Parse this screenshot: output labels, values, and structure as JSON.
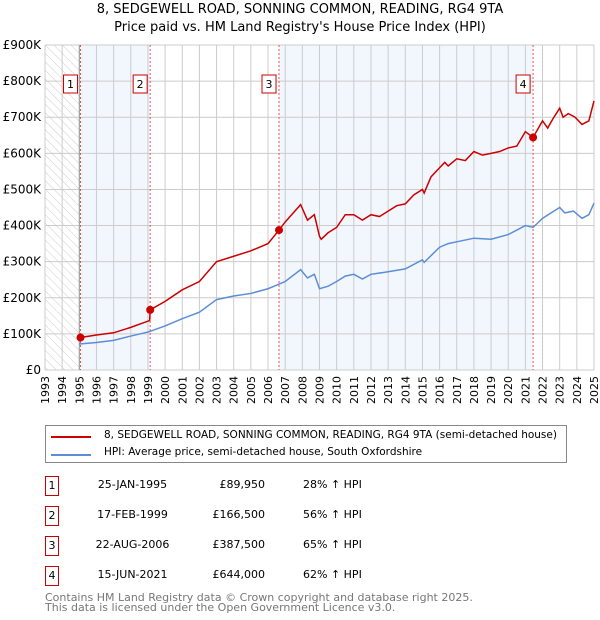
{
  "chart_data": {
    "type": "line",
    "title": "8, SEDGEWELL ROAD, SONNING COMMON, READING, RG4 9TA",
    "subtitle": "Price paid vs. HM Land Registry's House Price Index (HPI)",
    "xlim": [
      1993,
      2025
    ],
    "ylim": [
      0,
      900000
    ],
    "yticks": [
      {
        "v": 0,
        "l": "£0"
      },
      {
        "v": 100000,
        "l": "£100K"
      },
      {
        "v": 200000,
        "l": "£200K"
      },
      {
        "v": 300000,
        "l": "£300K"
      },
      {
        "v": 400000,
        "l": "£400K"
      },
      {
        "v": 500000,
        "l": "£500K"
      },
      {
        "v": 600000,
        "l": "£600K"
      },
      {
        "v": 700000,
        "l": "£700K"
      },
      {
        "v": 800000,
        "l": "£800K"
      },
      {
        "v": 900000,
        "l": "£900K"
      }
    ],
    "xticks": [
      "1993",
      "1994",
      "1995",
      "1996",
      "1997",
      "1998",
      "1999",
      "2000",
      "2001",
      "2002",
      "2003",
      "2004",
      "2005",
      "2006",
      "2007",
      "2008",
      "2009",
      "2010",
      "2011",
      "2012",
      "2013",
      "2014",
      "2015",
      "2016",
      "2017",
      "2018",
      "2019",
      "2020",
      "2021",
      "2022",
      "2023",
      "2024",
      "2025"
    ],
    "series": [
      {
        "name": "8, SEDGEWELL ROAD, SONNING COMMON, READING, RG4 9TA (semi-detached house)",
        "color": "#cc0000",
        "points": [
          [
            1995.07,
            89950
          ],
          [
            1996,
            97000
          ],
          [
            1997,
            103000
          ],
          [
            1998,
            118000
          ],
          [
            1999.1,
            137000
          ],
          [
            1999.13,
            166500
          ],
          [
            2000,
            190000
          ],
          [
            2001,
            222000
          ],
          [
            2002,
            245000
          ],
          [
            2003,
            300000
          ],
          [
            2004,
            315000
          ],
          [
            2005,
            330000
          ],
          [
            2006,
            350000
          ],
          [
            2006.64,
            387500
          ],
          [
            2007,
            410000
          ],
          [
            2007.9,
            458000
          ],
          [
            2008.3,
            415000
          ],
          [
            2008.7,
            430000
          ],
          [
            2009,
            370000
          ],
          [
            2009.1,
            362000
          ],
          [
            2009.5,
            380000
          ],
          [
            2010,
            395000
          ],
          [
            2010.5,
            430000
          ],
          [
            2011,
            430000
          ],
          [
            2011.5,
            415000
          ],
          [
            2012,
            430000
          ],
          [
            2012.5,
            425000
          ],
          [
            2013,
            440000
          ],
          [
            2013.5,
            455000
          ],
          [
            2014,
            460000
          ],
          [
            2014.5,
            485000
          ],
          [
            2015,
            500000
          ],
          [
            2015.1,
            490000
          ],
          [
            2015.5,
            535000
          ],
          [
            2016,
            560000
          ],
          [
            2016.3,
            575000
          ],
          [
            2016.5,
            565000
          ],
          [
            2017,
            585000
          ],
          [
            2017.5,
            580000
          ],
          [
            2018,
            605000
          ],
          [
            2018.5,
            595000
          ],
          [
            2019,
            600000
          ],
          [
            2019.5,
            605000
          ],
          [
            2020,
            615000
          ],
          [
            2020.5,
            620000
          ],
          [
            2021,
            660000
          ],
          [
            2021.45,
            644000
          ],
          [
            2022,
            690000
          ],
          [
            2022.3,
            670000
          ],
          [
            2022.6,
            695000
          ],
          [
            2023,
            725000
          ],
          [
            2023.2,
            700000
          ],
          [
            2023.5,
            710000
          ],
          [
            2023.9,
            700000
          ],
          [
            2024.3,
            680000
          ],
          [
            2024.7,
            690000
          ],
          [
            2025,
            745000
          ]
        ]
      },
      {
        "name": "HPI: Average price, semi-detached house, South Oxfordshire",
        "color": "#5b8ed6",
        "points": [
          [
            1995,
            72000
          ],
          [
            1996,
            76000
          ],
          [
            1997,
            82000
          ],
          [
            1998,
            94000
          ],
          [
            1999,
            105000
          ],
          [
            2000,
            122000
          ],
          [
            2001,
            142000
          ],
          [
            2002,
            160000
          ],
          [
            2003,
            195000
          ],
          [
            2004,
            205000
          ],
          [
            2005,
            212000
          ],
          [
            2006,
            225000
          ],
          [
            2007,
            245000
          ],
          [
            2007.9,
            278000
          ],
          [
            2008.3,
            255000
          ],
          [
            2008.7,
            265000
          ],
          [
            2009,
            225000
          ],
          [
            2009.5,
            232000
          ],
          [
            2010,
            245000
          ],
          [
            2010.5,
            260000
          ],
          [
            2011,
            265000
          ],
          [
            2011.5,
            252000
          ],
          [
            2012,
            265000
          ],
          [
            2013,
            272000
          ],
          [
            2014,
            280000
          ],
          [
            2015,
            305000
          ],
          [
            2015.1,
            298000
          ],
          [
            2016,
            340000
          ],
          [
            2016.5,
            350000
          ],
          [
            2017,
            355000
          ],
          [
            2018,
            365000
          ],
          [
            2019,
            362000
          ],
          [
            2020,
            375000
          ],
          [
            2021,
            400000
          ],
          [
            2021.45,
            395000
          ],
          [
            2022,
            420000
          ],
          [
            2022.5,
            435000
          ],
          [
            2023,
            450000
          ],
          [
            2023.3,
            435000
          ],
          [
            2023.8,
            440000
          ],
          [
            2024.3,
            420000
          ],
          [
            2024.7,
            430000
          ],
          [
            2025,
            462000
          ]
        ]
      }
    ],
    "sales": [
      {
        "n": "1",
        "x": 1995.07,
        "y": 89950,
        "date": "25-JAN-1995",
        "price": "£89,950",
        "hpi": "28% ↑ HPI"
      },
      {
        "n": "2",
        "x": 1999.13,
        "y": 166500,
        "date": "17-FEB-1999",
        "price": "£166,500",
        "hpi": "56% ↑ HPI"
      },
      {
        "n": "3",
        "x": 2006.64,
        "y": 387500,
        "date": "22-AUG-2006",
        "price": "£387,500",
        "hpi": "65% ↑ HPI"
      },
      {
        "n": "4",
        "x": 2021.45,
        "y": 644000,
        "date": "15-JUN-2021",
        "price": "£644,000",
        "hpi": "62% ↑ HPI"
      }
    ],
    "grid": true,
    "legend": "below"
  },
  "footer": [
    "Contains HM Land Registry data © Crown copyright and database right 2025.",
    "This data is licensed under the Open Government Licence v3.0."
  ]
}
